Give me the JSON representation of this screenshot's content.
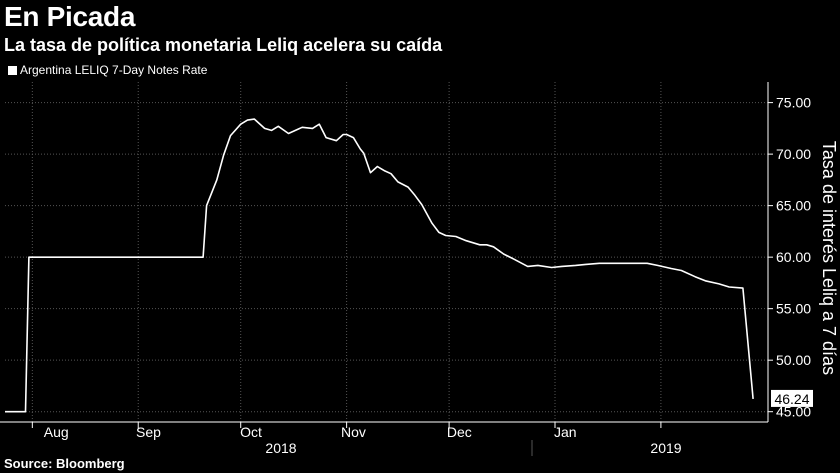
{
  "header": {
    "title": "En Picada",
    "subtitle": "La tasa de política monetaria Leliq acelera su caída"
  },
  "legend": {
    "label": "Argentina LELIQ 7-Day Notes Rate"
  },
  "footer": {
    "source": "Source: Bloomberg"
  },
  "colors": {
    "background": "#000000",
    "line": "#ffffff",
    "grid": "#555555",
    "text": "#ffffff"
  },
  "chart_data": {
    "type": "line",
    "title": "En Picada",
    "subtitle": "La tasa de política monetaria Leliq acelera su caída",
    "ylabel": "Tasa de interés Leliq a 7 días",
    "xlabel": "",
    "ylim": [
      44,
      77
    ],
    "yticks": [
      45,
      50,
      55,
      60,
      65,
      70,
      75
    ],
    "ytick_labels": [
      "45.00",
      "50.00",
      "55.00",
      "60.00",
      "65.00",
      "70.00",
      "75.00"
    ],
    "grid": true,
    "legend_position": "top-left",
    "x_month_labels": [
      "Aug",
      "Sep",
      "Oct",
      "Nov",
      "Dec",
      "Jan"
    ],
    "x_year_labels": [
      "2018",
      "2019"
    ],
    "last_value_label": "46.24",
    "series": [
      {
        "name": "Argentina LELIQ 7-Day Notes Rate",
        "x": [
          "2018-07-24",
          "2018-07-30",
          "2018-07-31",
          "2018-08-01",
          "2018-08-15",
          "2018-09-01",
          "2018-09-15",
          "2018-09-20",
          "2018-09-21",
          "2018-09-24",
          "2018-09-26",
          "2018-09-28",
          "2018-10-01",
          "2018-10-03",
          "2018-10-05",
          "2018-10-08",
          "2018-10-10",
          "2018-10-12",
          "2018-10-15",
          "2018-10-17",
          "2018-10-19",
          "2018-10-22",
          "2018-10-24",
          "2018-10-26",
          "2018-10-29",
          "2018-10-31",
          "2018-11-01",
          "2018-11-03",
          "2018-11-05",
          "2018-11-06",
          "2018-11-08",
          "2018-11-10",
          "2018-11-12",
          "2018-11-14",
          "2018-11-16",
          "2018-11-19",
          "2018-11-21",
          "2018-11-23",
          "2018-11-26",
          "2018-11-28",
          "2018-11-30",
          "2018-12-03",
          "2018-12-06",
          "2018-12-10",
          "2018-12-12",
          "2018-12-14",
          "2018-12-17",
          "2018-12-20",
          "2018-12-24",
          "2018-12-27",
          "2018-12-31",
          "2019-01-03",
          "2019-01-07",
          "2019-01-10",
          "2019-01-14",
          "2019-01-17",
          "2019-01-21",
          "2019-01-24",
          "2019-01-28",
          "2019-01-31",
          "2019-02-04",
          "2019-02-07",
          "2019-02-11",
          "2019-02-14",
          "2019-02-18",
          "2019-02-21",
          "2019-02-25",
          "2019-02-28"
        ],
        "y": [
          45.0,
          45.0,
          60.0,
          60.0,
          60.0,
          60.0,
          60.0,
          60.0,
          65.0,
          67.5,
          69.9,
          71.8,
          72.9,
          73.3,
          73.4,
          72.5,
          72.3,
          72.7,
          72.0,
          72.3,
          72.6,
          72.5,
          72.9,
          71.6,
          71.3,
          71.9,
          71.9,
          71.6,
          70.5,
          70.1,
          68.2,
          68.8,
          68.4,
          68.1,
          67.3,
          66.8,
          66.0,
          65.1,
          63.3,
          62.4,
          62.1,
          62.0,
          61.6,
          61.2,
          61.2,
          61.0,
          60.3,
          59.8,
          59.1,
          59.2,
          59.0,
          59.1,
          59.2,
          59.3,
          59.4,
          59.4,
          59.4,
          59.4,
          59.4,
          59.2,
          58.9,
          58.7,
          58.1,
          57.7,
          57.4,
          57.1,
          57.0,
          46.24
        ]
      }
    ]
  }
}
